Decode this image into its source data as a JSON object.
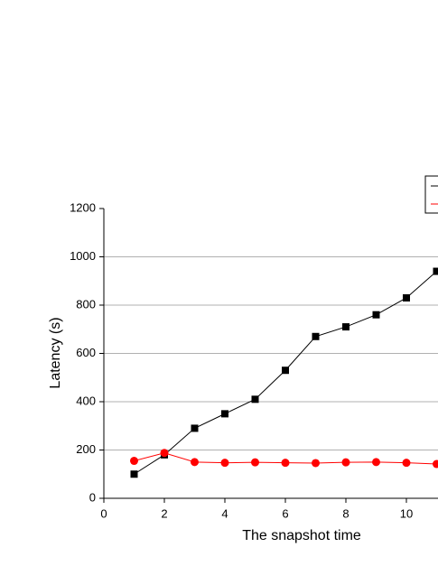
{
  "chart_data": {
    "type": "line",
    "x_label": "The snapshot time",
    "y_label": "Latency (s)",
    "x": [
      1,
      2,
      3,
      4,
      5,
      6,
      7,
      8,
      9,
      10,
      11
    ],
    "series": [
      {
        "color": "#000000",
        "marker": "square",
        "values": [
          100,
          180,
          290,
          350,
          410,
          530,
          670,
          710,
          760,
          830,
          940
        ]
      },
      {
        "color": "#ff0000",
        "marker": "circle",
        "values": [
          155,
          188,
          150,
          147,
          149,
          147,
          146,
          149,
          150,
          147,
          142
        ]
      }
    ],
    "xlim": [
      0,
      11
    ],
    "xticks": [
      0,
      2,
      4,
      6,
      8,
      10
    ],
    "ylim": [
      0,
      1200
    ],
    "yticks": [
      0,
      200,
      400,
      600,
      800,
      1000,
      1200
    ],
    "grid": true,
    "legend": "top-right"
  }
}
